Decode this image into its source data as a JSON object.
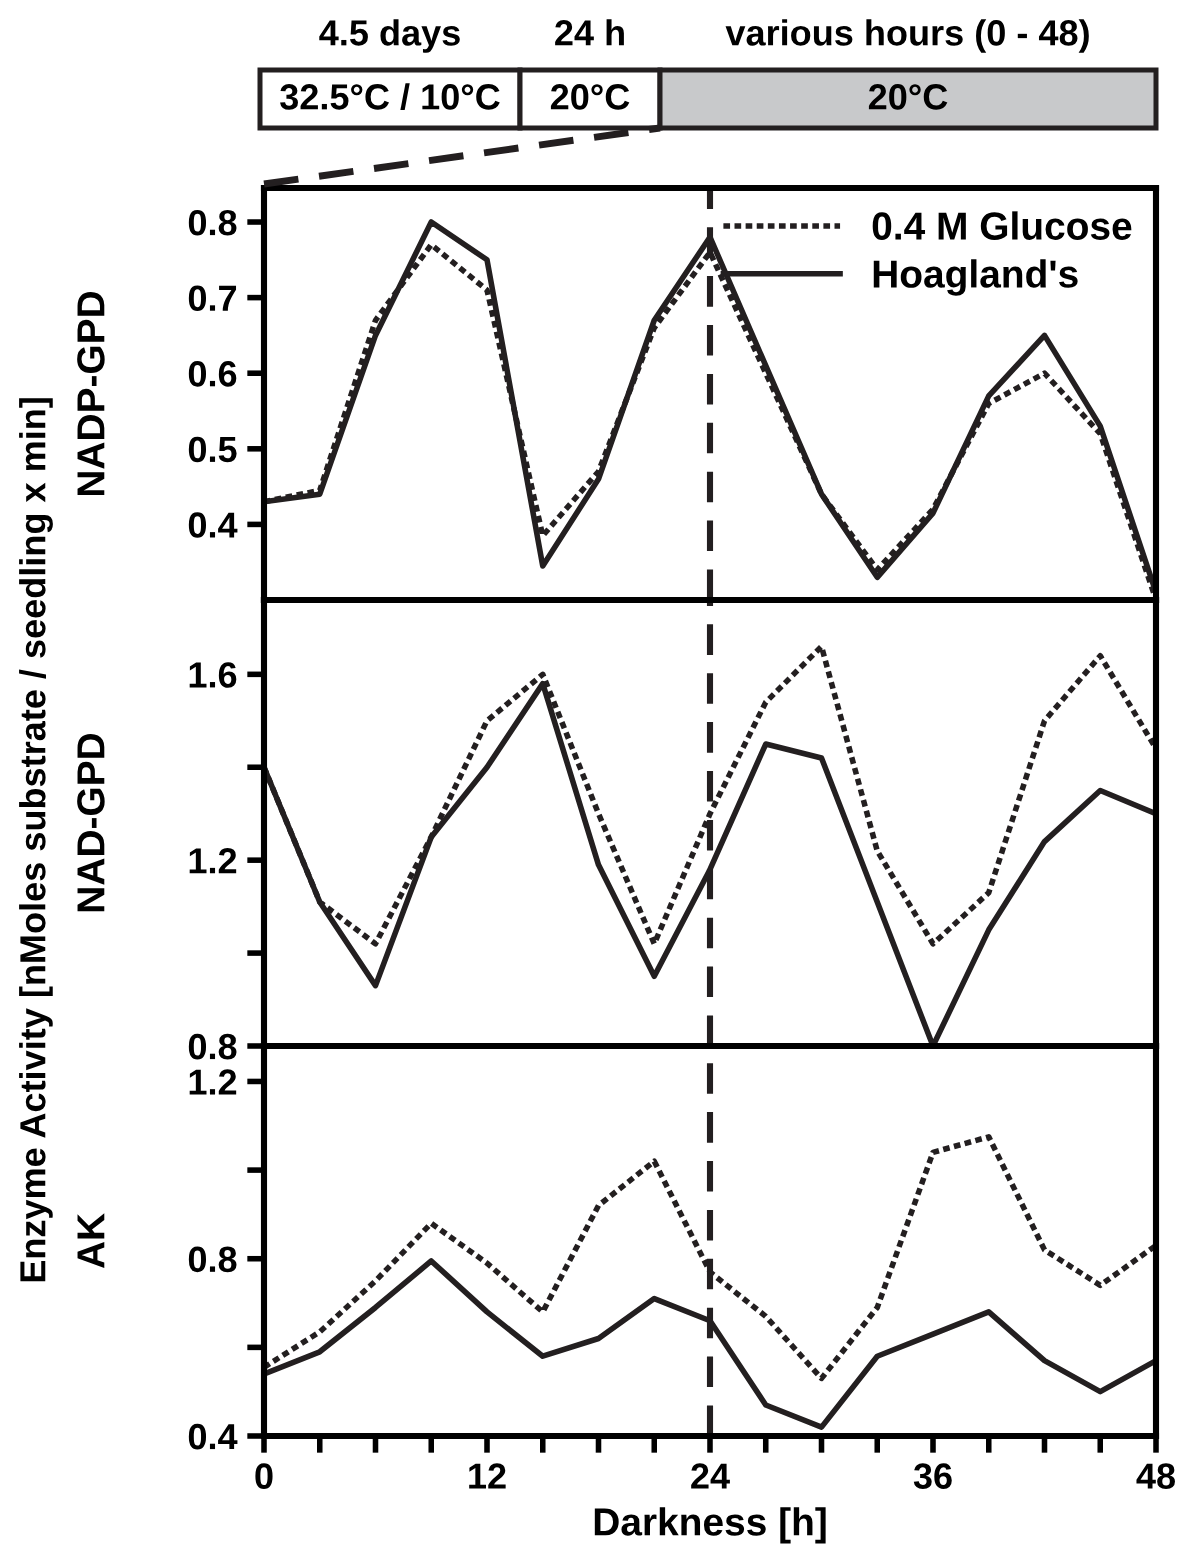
{
  "chart_data": [
    {
      "type": "line",
      "ylabel": "NADP-GPD",
      "x": [
        0,
        3,
        6,
        9,
        12,
        15,
        18,
        21,
        24,
        27,
        30,
        33,
        36,
        39,
        42,
        45,
        48
      ],
      "series": [
        {
          "name": "0.4 M Glucose",
          "color": "#231f20",
          "line_style": "dotted",
          "values": [
            0.43,
            0.445,
            0.67,
            0.77,
            0.71,
            0.385,
            0.47,
            0.66,
            0.76,
            0.6,
            0.44,
            0.34,
            0.42,
            0.56,
            0.6,
            0.52,
            0.3
          ]
        },
        {
          "name": "Hoagland's",
          "color": "#231f20",
          "line_style": "solid",
          "values": [
            0.43,
            0.44,
            0.65,
            0.8,
            0.75,
            0.345,
            0.46,
            0.67,
            0.78,
            0.61,
            0.44,
            0.33,
            0.415,
            0.57,
            0.65,
            0.53,
            0.31
          ]
        }
      ],
      "xlim": [
        0,
        48
      ],
      "xticks": [
        0,
        {
          "value": 3,
          "label": null
        },
        {
          "value": 6,
          "label": null
        },
        {
          "value": 9,
          "label": null
        },
        12,
        {
          "value": 15,
          "label": null
        },
        {
          "value": 18,
          "label": null
        },
        {
          "value": 21,
          "label": null
        },
        24,
        {
          "value": 27,
          "label": null
        },
        {
          "value": 30,
          "label": null
        },
        {
          "value": 33,
          "label": null
        },
        36,
        {
          "value": 39,
          "label": null
        },
        {
          "value": 42,
          "label": null
        },
        {
          "value": 45,
          "label": null
        },
        48
      ],
      "ylim": [
        0.3,
        0.845
      ],
      "yticks": [
        0.4,
        0.5,
        0.6,
        0.7,
        0.8
      ],
      "tick_labels": "y",
      "legend": "top right",
      "grid": false,
      "marker": "none",
      "ref_lines": [
        {
          "axis": "x",
          "value": 24,
          "label": null,
          "line_style": "dashed",
          "color": "#231f20"
        }
      ],
      "annotations": [
        "4.5 days",
        "24 h",
        "various hours (0 - 48)",
        "32.5°C / 10°C",
        "20°C",
        "20°C",
        "Enzyme Activity [nMoles substrate / seedling x min]"
      ]
    },
    {
      "type": "line",
      "ylabel": "NAD-GPD",
      "x": [
        0,
        3,
        6,
        9,
        12,
        15,
        18,
        21,
        24,
        27,
        30,
        33,
        36,
        39,
        42,
        45,
        48
      ],
      "series": [
        {
          "color": "#231f20",
          "line_style": "dotted",
          "values": [
            1.4,
            1.11,
            1.02,
            1.25,
            1.5,
            1.6,
            1.3,
            1.02,
            1.3,
            1.54,
            1.66,
            1.22,
            1.02,
            1.13,
            1.5,
            1.64,
            1.44
          ]
        },
        {
          "color": "#231f20",
          "line_style": "solid",
          "values": [
            1.4,
            1.11,
            0.93,
            1.25,
            1.4,
            1.58,
            1.19,
            0.95,
            1.18,
            1.45,
            1.42,
            1.11,
            0.8,
            1.05,
            1.24,
            1.35,
            1.3
          ]
        }
      ],
      "xlim": [
        0,
        48
      ],
      "xticks": [
        0,
        {
          "value": 3,
          "label": null
        },
        {
          "value": 6,
          "label": null
        },
        {
          "value": 9,
          "label": null
        },
        12,
        {
          "value": 15,
          "label": null
        },
        {
          "value": 18,
          "label": null
        },
        {
          "value": 21,
          "label": null
        },
        24,
        {
          "value": 27,
          "label": null
        },
        {
          "value": 30,
          "label": null
        },
        {
          "value": 33,
          "label": null
        },
        36,
        {
          "value": 39,
          "label": null
        },
        {
          "value": 42,
          "label": null
        },
        {
          "value": 45,
          "label": null
        },
        48
      ],
      "ylim": [
        0.8,
        1.76
      ],
      "yticks": [
        0.8,
        {
          "value": 1.0,
          "label": null
        },
        1.2,
        {
          "value": 1.4,
          "label": null
        },
        1.6
      ],
      "tick_labels": "y",
      "grid": false,
      "marker": "none",
      "ref_lines": [
        {
          "axis": "x",
          "value": 24,
          "label": null,
          "line_style": "dashed",
          "color": "#231f20"
        }
      ]
    },
    {
      "type": "line",
      "ylabel": "AK",
      "xlabel": "Darkness [h]",
      "x": [
        0,
        3,
        6,
        9,
        12,
        15,
        18,
        21,
        24,
        27,
        30,
        33,
        36,
        39,
        42,
        45,
        48
      ],
      "series": [
        {
          "color": "#231f20",
          "line_style": "dotted",
          "values": [
            0.555,
            0.635,
            0.75,
            0.88,
            0.79,
            0.68,
            0.92,
            1.02,
            0.77,
            0.67,
            0.53,
            0.69,
            1.04,
            1.075,
            0.82,
            0.74,
            0.83
          ]
        },
        {
          "color": "#231f20",
          "line_style": "solid",
          "values": [
            0.54,
            0.59,
            0.69,
            0.795,
            0.68,
            0.58,
            0.62,
            0.71,
            0.66,
            0.47,
            0.42,
            0.58,
            0.63,
            0.68,
            0.57,
            0.5,
            0.57
          ]
        }
      ],
      "xlim": [
        0,
        48
      ],
      "xticks": [
        0,
        {
          "value": 3,
          "label": null
        },
        {
          "value": 6,
          "label": null
        },
        {
          "value": 9,
          "label": null
        },
        12,
        {
          "value": 15,
          "label": null
        },
        {
          "value": 18,
          "label": null
        },
        {
          "value": 21,
          "label": null
        },
        24,
        {
          "value": 27,
          "label": null
        },
        {
          "value": 30,
          "label": null
        },
        {
          "value": 33,
          "label": null
        },
        36,
        {
          "value": 39,
          "label": null
        },
        {
          "value": 42,
          "label": null
        },
        {
          "value": 45,
          "label": null
        },
        48
      ],
      "ylim": [
        0.4,
        1.28
      ],
      "yticks": [
        0.4,
        {
          "value": 0.6,
          "label": null
        },
        0.8,
        {
          "value": 1.0,
          "label": null
        },
        1.2
      ],
      "grid": false,
      "marker": "none",
      "ref_lines": [
        {
          "axis": "x",
          "value": 24,
          "label": null,
          "line_style": "dashed",
          "color": "#231f20"
        }
      ]
    }
  ]
}
